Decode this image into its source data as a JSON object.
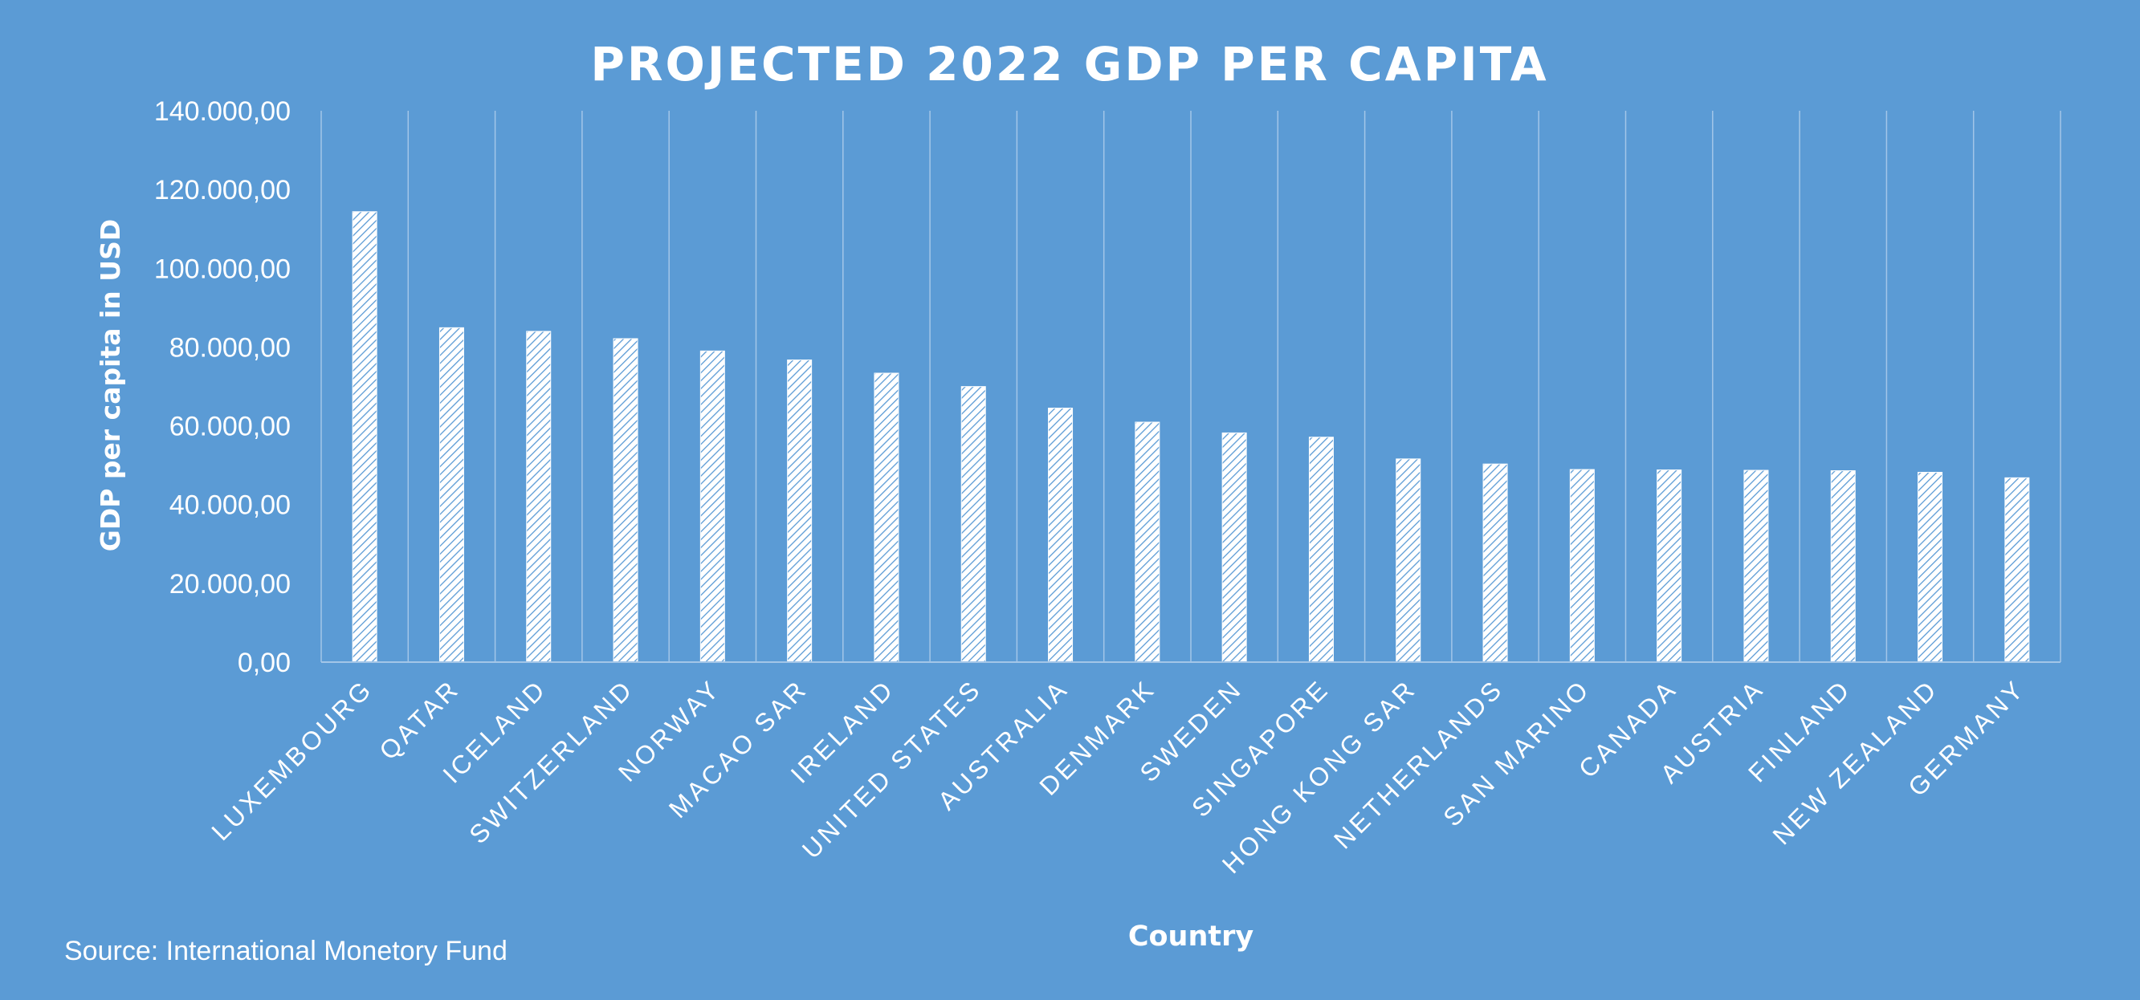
{
  "chart_data": {
    "type": "bar",
    "title": "PROJECTED 2022 GDP PER CAPITA",
    "xlabel": "Country",
    "ylabel": "GDP per capita in USD",
    "source": "Source: International Monetory Fund",
    "ylim": [
      0,
      140000
    ],
    "yticks": [
      {
        "value": 0,
        "label": "0,00"
      },
      {
        "value": 20000,
        "label": "20.000,00"
      },
      {
        "value": 40000,
        "label": "40.000,00"
      },
      {
        "value": 60000,
        "label": "60.000,00"
      },
      {
        "value": 80000,
        "label": "80.000,00"
      },
      {
        "value": 100000,
        "label": "100.000,00"
      },
      {
        "value": 120000,
        "label": "120.000,00"
      },
      {
        "value": 140000,
        "label": "140.000,00"
      }
    ],
    "grid": "vertical",
    "categories": [
      "LUXEMBOURG",
      "QATAR",
      "ICELAND",
      "SWITZERLAND",
      "NORWAY",
      "MACAO SAR",
      "IRELAND",
      "UNITED STATES",
      "AUSTRALIA",
      "DENMARK",
      "SWEDEN",
      "SINGAPORE",
      "HONG KONG SAR",
      "NETHERLANDS",
      "SAN MARINO",
      "CANADA",
      "AUSTRIA",
      "FINLAND",
      "NEW ZEALAND",
      "GERMANY"
    ],
    "values": [
      114370,
      84906,
      83985,
      82130,
      79000,
      76727,
      73366,
      69970,
      64500,
      60930,
      58200,
      57115,
      51590,
      50300,
      48900,
      48800,
      48700,
      48600,
      48200,
      46800
    ],
    "colors": {
      "background": "#5B9BD5",
      "bar_fill": "#FFFFFF",
      "bar_hatch": "#5B9BD5",
      "text": "#FFFFFF",
      "grid": "#A3C6E8"
    }
  }
}
